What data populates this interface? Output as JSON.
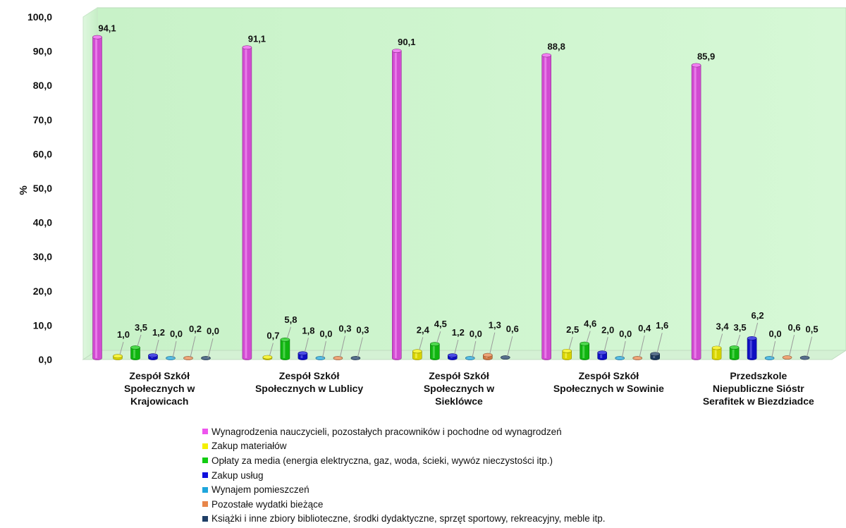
{
  "chart_data": {
    "type": "bar",
    "ylabel": "%",
    "ylim": [
      0,
      100
    ],
    "ytick_labels": [
      "0,0",
      "10,0",
      "20,0",
      "30,0",
      "40,0",
      "50,0",
      "60,0",
      "70,0",
      "80,0",
      "90,0",
      "100,0"
    ],
    "categories": [
      [
        "Zespół Szkół",
        "Społecznych w",
        "Krajowicach"
      ],
      [
        "Zespół Szkół",
        "Społecznych w Lublicy"
      ],
      [
        "Zespół Szkół",
        "Społecznych w",
        "Sieklówce"
      ],
      [
        "Zespół Szkół",
        "Społecznych w Sowinie"
      ],
      [
        "Przedszkole",
        "Niepubliczne Sióstr",
        "Serafitek w Biezdziadce"
      ]
    ],
    "series": [
      {
        "name": "Wynagrodzenia nauczycieli, pozostałych pracowników i pochodne od wynagrodzeń",
        "color": "#ee55ee",
        "values": [
          94.1,
          91.1,
          90.1,
          88.8,
          85.9
        ],
        "labels": [
          "94,1",
          "91,1",
          "90,1",
          "88,8",
          "85,9"
        ]
      },
      {
        "name": "Zakup materiałów",
        "color": "#f4f000",
        "values": [
          1.0,
          0.7,
          2.4,
          2.5,
          3.4
        ],
        "labels": [
          "1,0",
          "0,7",
          "2,4",
          "2,5",
          "3,4"
        ]
      },
      {
        "name": "Opłaty za media (energia elektryczna, gaz, woda, ścieki, wywóz nieczystości itp.)",
        "color": "#12cc12",
        "values": [
          3.5,
          5.8,
          4.5,
          4.6,
          3.5
        ],
        "labels": [
          "3,5",
          "5,8",
          "4,5",
          "4,6",
          "3,5"
        ]
      },
      {
        "name": "Zakup usług",
        "color": "#1010dd",
        "values": [
          1.2,
          1.8,
          1.2,
          2.0,
          6.2
        ],
        "labels": [
          "1,2",
          "1,8",
          "1,2",
          "2,0",
          "6,2"
        ]
      },
      {
        "name": "Wynajem pomieszczeń",
        "color": "#1ea6dc",
        "values": [
          0.0,
          0.0,
          0.0,
          0.0,
          0.0
        ],
        "labels": [
          "0,0",
          "0,0",
          "0,0",
          "0,0",
          "0,0"
        ]
      },
      {
        "name": "Pozostałe wydatki bieżące",
        "color": "#e8864a",
        "values": [
          0.2,
          0.3,
          1.3,
          0.4,
          0.6
        ],
        "labels": [
          "0,2",
          "0,3",
          "1,3",
          "0,4",
          "0,6"
        ]
      },
      {
        "name": "Książki i inne zbiory biblioteczne, środki dydaktyczne, sprzęt sportowy, rekreacyjny, meble itp.",
        "color": "#1f3f66",
        "values": [
          0.0,
          0.3,
          0.6,
          1.6,
          0.5
        ],
        "labels": [
          "0,0",
          "0,3",
          "0,6",
          "1,6",
          "0,5"
        ]
      }
    ],
    "grid": false,
    "legend": "bottom",
    "background_wall_color": "#ccf5cc",
    "floor_color": "#d4f1d4"
  }
}
